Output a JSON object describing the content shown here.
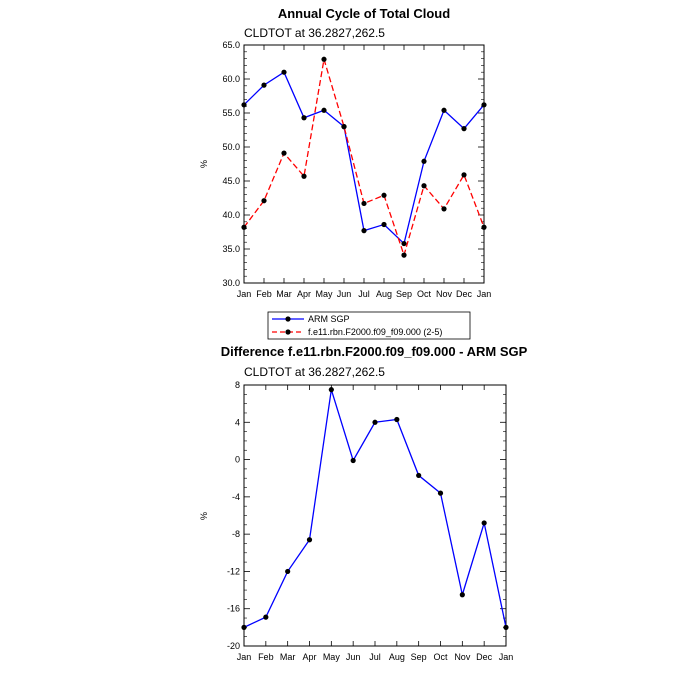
{
  "chart_data": [
    {
      "type": "line",
      "title": "Annual Cycle of Total Cloud",
      "subtitle": "CLDTOT at 36.2827,262.5",
      "xlabel": "",
      "ylabel": "%",
      "categories": [
        "Jan",
        "Feb",
        "Mar",
        "Apr",
        "May",
        "Jun",
        "Jul",
        "Aug",
        "Sep",
        "Oct",
        "Nov",
        "Dec",
        "Jan"
      ],
      "ylim": [
        30,
        65
      ],
      "yticks": [
        30,
        35,
        40,
        45,
        50,
        55,
        60,
        65
      ],
      "ytick_labels": [
        "30.0",
        "35.0",
        "40.0",
        "45.0",
        "50.0",
        "55.0",
        "60.0",
        "65.0"
      ],
      "legend_position": "bottom",
      "series": [
        {
          "name": "ARM SGP",
          "color": "#0000ff",
          "dash": "solid",
          "values": [
            56.2,
            59.1,
            61.0,
            54.3,
            55.4,
            53.0,
            37.7,
            38.6,
            35.8,
            47.9,
            55.4,
            52.7,
            56.2
          ]
        },
        {
          "name": "f.e11.rbn.F2000.f09_f09.000 (2-5)",
          "color": "#ff0000",
          "dash": "dashed",
          "values": [
            38.2,
            42.1,
            49.1,
            45.7,
            62.9,
            53.0,
            41.7,
            42.9,
            34.1,
            44.3,
            40.9,
            45.9,
            38.2
          ]
        }
      ]
    },
    {
      "type": "line",
      "title": "Difference f.e11.rbn.F2000.f09_f09.000 - ARM SGP",
      "subtitle": "CLDTOT at 36.2827,262.5",
      "xlabel": "",
      "ylabel": "%",
      "categories": [
        "Jan",
        "Feb",
        "Mar",
        "Apr",
        "May",
        "Jun",
        "Jul",
        "Aug",
        "Sep",
        "Oct",
        "Nov",
        "Dec",
        "Jan"
      ],
      "ylim": [
        -20,
        8
      ],
      "yticks": [
        -20,
        -16,
        -12,
        -8,
        -4,
        0,
        4,
        8
      ],
      "ytick_labels": [
        "-20",
        "-16",
        "-12",
        "-8",
        "-4",
        "0",
        "4",
        "8"
      ],
      "series": [
        {
          "name": "Difference",
          "color": "#0000ff",
          "dash": "solid",
          "values": [
            -18.0,
            -16.9,
            -12.0,
            -8.6,
            7.5,
            -0.1,
            4.0,
            4.3,
            -1.7,
            -3.6,
            -14.5,
            -6.8,
            -18.0
          ]
        }
      ]
    }
  ]
}
